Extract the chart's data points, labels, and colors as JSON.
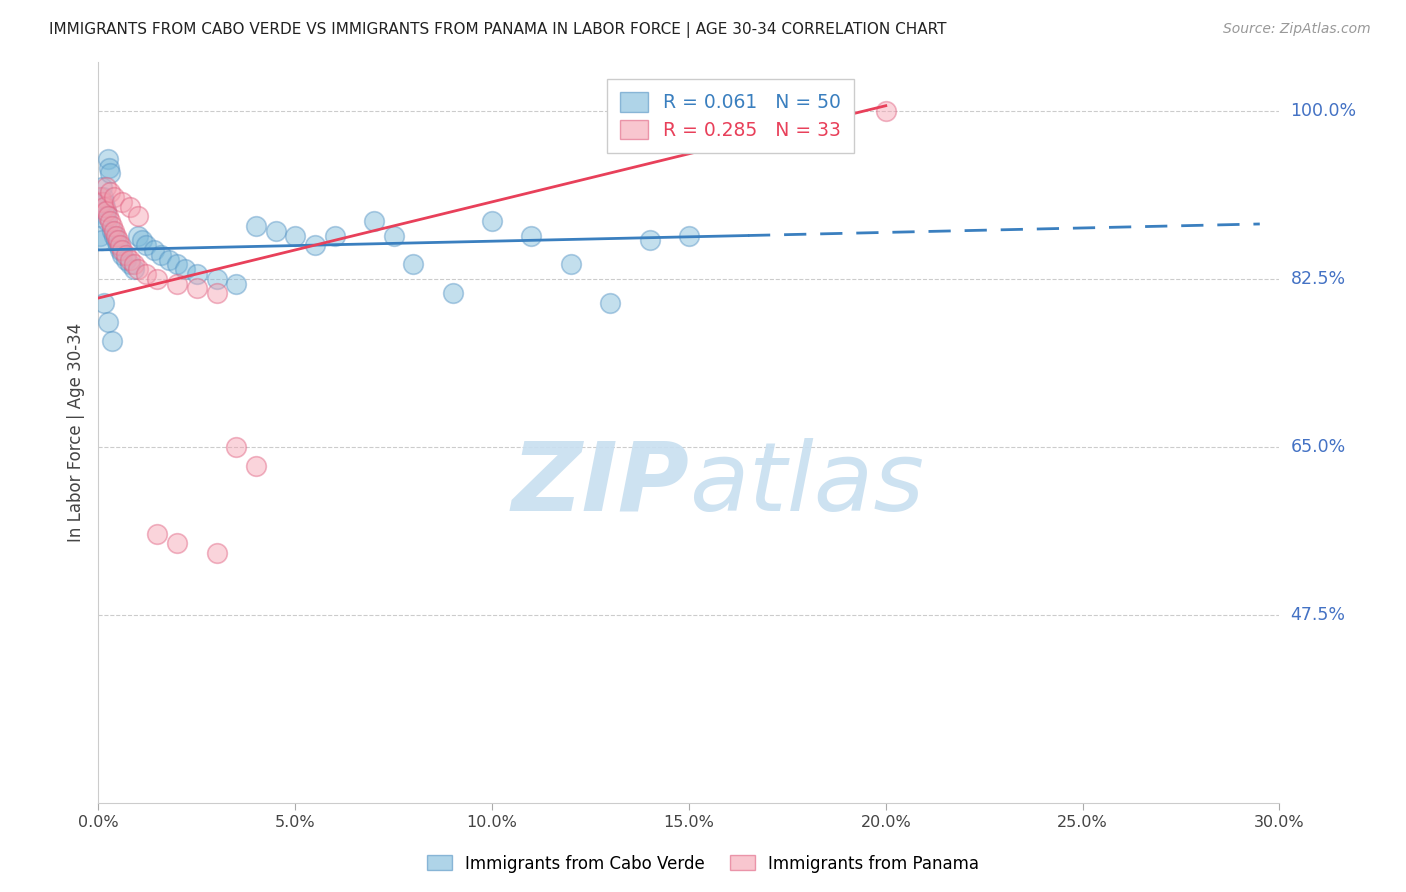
{
  "title": "IMMIGRANTS FROM CABO VERDE VS IMMIGRANTS FROM PANAMA IN LABOR FORCE | AGE 30-34 CORRELATION CHART",
  "source": "Source: ZipAtlas.com",
  "xlabel_ticks": [
    "0.0%",
    "5.0%",
    "10.0%",
    "15.0%",
    "20.0%",
    "25.0%",
    "30.0%"
  ],
  "xlabel_vals": [
    0.0,
    5.0,
    10.0,
    15.0,
    20.0,
    25.0,
    30.0
  ],
  "ylabel": "In Labor Force | Age 30-34",
  "ylabel_ticks": [
    "100.0%",
    "82.5%",
    "65.0%",
    "47.5%"
  ],
  "ylabel_vals": [
    100.0,
    82.5,
    65.0,
    47.5
  ],
  "xmin": 0.0,
  "xmax": 30.0,
  "ymin": 28.0,
  "ymax": 105.0,
  "cabo_verde_R": 0.061,
  "cabo_verde_N": 50,
  "panama_R": 0.285,
  "panama_N": 33,
  "cabo_verde_color": "#7ab8d9",
  "panama_color": "#f4a0b0",
  "cabo_verde_edge": "#5593c4",
  "panama_edge": "#e06080",
  "cabo_verde_x": [
    0.05,
    0.08,
    0.1,
    0.12,
    0.14,
    0.16,
    0.18,
    0.2,
    0.22,
    0.25,
    0.28,
    0.3,
    0.35,
    0.4,
    0.45,
    0.5,
    0.55,
    0.6,
    0.7,
    0.8,
    0.9,
    1.0,
    1.1,
    1.2,
    1.4,
    1.6,
    1.8,
    2.0,
    2.2,
    2.5,
    3.0,
    3.5,
    4.0,
    4.5,
    5.0,
    5.5,
    6.0,
    7.0,
    7.5,
    8.0,
    9.0,
    10.0,
    11.0,
    12.0,
    13.0,
    14.0,
    15.0,
    0.15,
    0.25,
    0.35
  ],
  "cabo_verde_y": [
    87.0,
    86.5,
    92.0,
    91.0,
    90.5,
    90.0,
    89.5,
    89.0,
    88.5,
    95.0,
    94.0,
    93.5,
    87.5,
    87.0,
    86.5,
    86.0,
    85.5,
    85.0,
    84.5,
    84.0,
    83.5,
    87.0,
    86.5,
    86.0,
    85.5,
    85.0,
    84.5,
    84.0,
    83.5,
    83.0,
    82.5,
    82.0,
    88.0,
    87.5,
    87.0,
    86.0,
    87.0,
    88.5,
    87.0,
    84.0,
    81.0,
    88.5,
    87.0,
    84.0,
    80.0,
    86.5,
    87.0,
    80.0,
    78.0,
    76.0
  ],
  "panama_x": [
    0.05,
    0.1,
    0.15,
    0.2,
    0.25,
    0.3,
    0.35,
    0.4,
    0.45,
    0.5,
    0.55,
    0.6,
    0.7,
    0.8,
    0.9,
    1.0,
    1.2,
    1.5,
    2.0,
    2.5,
    3.0,
    3.5,
    4.0,
    20.0,
    0.2,
    0.3,
    0.4,
    0.6,
    0.8,
    1.0,
    1.5,
    2.0,
    3.0
  ],
  "panama_y": [
    91.0,
    90.5,
    90.0,
    89.5,
    89.0,
    88.5,
    88.0,
    87.5,
    87.0,
    86.5,
    86.0,
    85.5,
    85.0,
    84.5,
    84.0,
    83.5,
    83.0,
    82.5,
    82.0,
    81.5,
    81.0,
    65.0,
    63.0,
    100.0,
    92.0,
    91.5,
    91.0,
    90.5,
    90.0,
    89.0,
    56.0,
    55.0,
    54.0
  ],
  "watermark_zip": "ZIP",
  "watermark_atlas": "atlas",
  "cabo_trend_x0": 0.0,
  "cabo_trend_x1": 16.5,
  "cabo_trend_y0": 85.5,
  "cabo_trend_y1": 87.0,
  "cabo_dash_x0": 16.5,
  "cabo_dash_x1": 29.5,
  "cabo_dash_y0": 87.0,
  "cabo_dash_y1": 88.2,
  "panama_trend_x0": 0.0,
  "panama_trend_x1": 20.0,
  "panama_trend_y0": 80.5,
  "panama_trend_y1": 100.5
}
